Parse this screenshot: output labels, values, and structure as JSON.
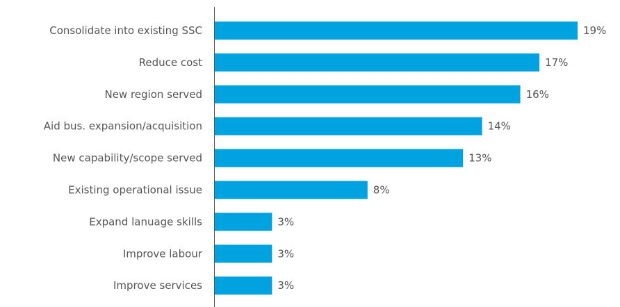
{
  "chart_data": {
    "type": "bar",
    "orientation": "horizontal",
    "categories": [
      "Consolidate into existing SSC",
      "Reduce cost",
      "New region served",
      "Aid bus. expansion/acquisition",
      "New capability/scope served",
      "Existing operational issue",
      "Expand lanuage skills",
      "Improve labour",
      "Improve services"
    ],
    "values": [
      19,
      17,
      16,
      14,
      13,
      8,
      3,
      3,
      3
    ],
    "value_labels": [
      "19%",
      "17%",
      "16%",
      "14%",
      "13%",
      "8%",
      "3%",
      "3%",
      "3%"
    ],
    "unit": "%",
    "xlim": [
      0,
      19
    ],
    "grid": false,
    "legend": "none",
    "colors": {
      "bar": "#00A3E0",
      "axis": "#555555",
      "text": "#555555"
    }
  }
}
